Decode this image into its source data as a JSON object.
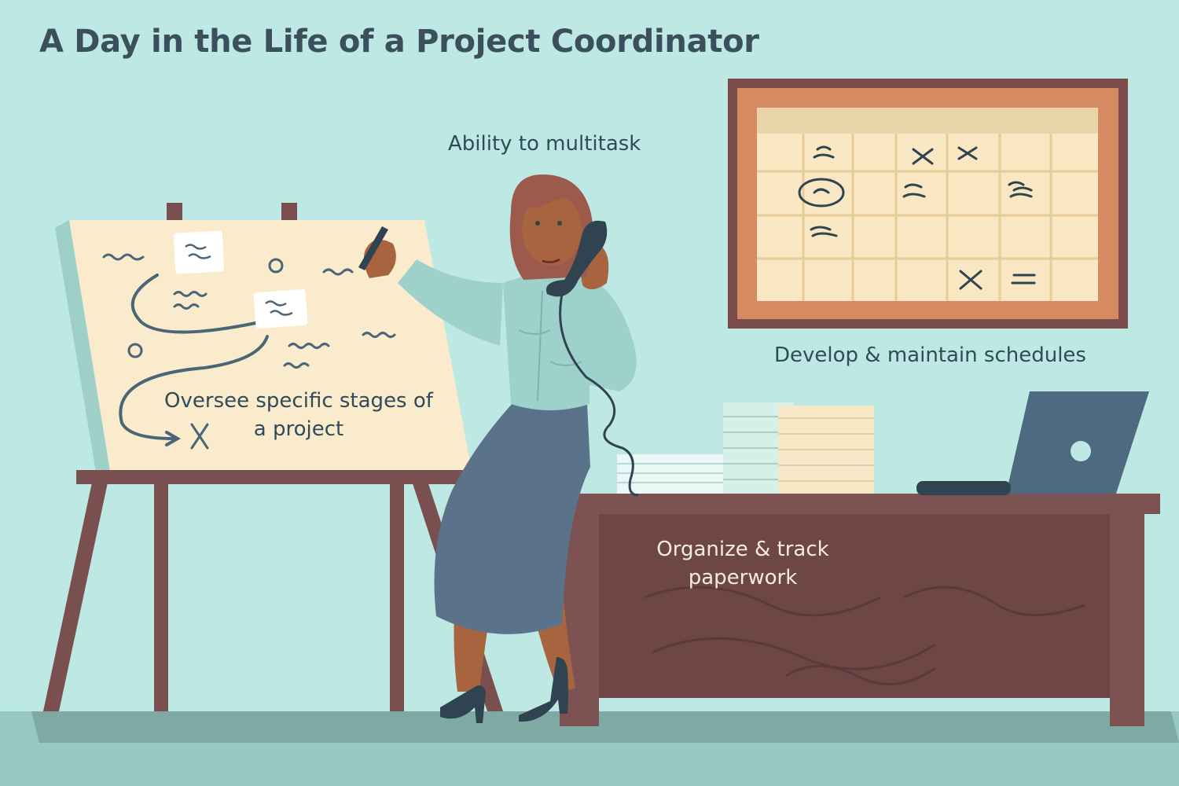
{
  "title": "A Day in the Life of a Project Coordinator",
  "captions": {
    "multitask": "Ability to multitask",
    "schedules": "Develop & maintain schedules",
    "oversee": "Oversee specific stages of a project",
    "paperwork": "Organize & track paperwork"
  },
  "colors": {
    "background": "#bde8e3",
    "floor": "#7eaaa3",
    "wood": "#7a4f4f",
    "board_paper": "#f9ebcb",
    "blouse": "#9fd1cc",
    "skirt": "#5a738a",
    "text": "#2f4b5a"
  }
}
